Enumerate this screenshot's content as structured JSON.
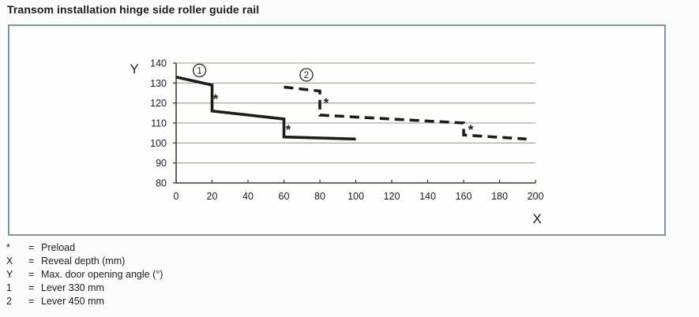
{
  "page": {
    "title": "Transom installation hinge side roller guide rail"
  },
  "colors": {
    "line": "#1c1c1c",
    "grid": "#9b9b8d",
    "axis": "#3d3d38",
    "panel_border": "#8295a3",
    "text": "#1b1b1b"
  },
  "legend": {
    "items": [
      {
        "symbol": "*",
        "eq": "=",
        "label": "Preload"
      },
      {
        "symbol": "X",
        "eq": "=",
        "label": "Reveal depth (mm)"
      },
      {
        "symbol": "Y",
        "eq": "=",
        "label": "Max. door opening angle (°)"
      },
      {
        "symbol": "1",
        "eq": "=",
        "label": "Lever 330 mm"
      },
      {
        "symbol": "2",
        "eq": "=",
        "label": "Lever 450 mm"
      }
    ]
  },
  "chart_data": {
    "type": "line",
    "title": "Transom installation hinge side roller guide rail",
    "xlabel": "X",
    "ylabel": "Y",
    "xlim": [
      0,
      200
    ],
    "ylim": [
      80,
      140
    ],
    "x_ticks": [
      0,
      20,
      40,
      60,
      80,
      100,
      120,
      140,
      160,
      180,
      200
    ],
    "y_ticks": [
      80,
      90,
      100,
      110,
      120,
      130,
      140
    ],
    "grid": "horizontal",
    "legend_position": "below",
    "series": [
      {
        "name": "Lever 330 mm",
        "id": "1",
        "style": "solid",
        "points": [
          [
            0,
            133
          ],
          [
            20,
            129
          ],
          [
            20,
            116
          ],
          [
            60,
            112
          ],
          [
            60,
            103
          ],
          [
            100,
            102
          ]
        ]
      },
      {
        "name": "Lever 450 mm",
        "id": "2",
        "style": "dashed",
        "points": [
          [
            60,
            128
          ],
          [
            80,
            126
          ],
          [
            80,
            114
          ],
          [
            160,
            110
          ],
          [
            160,
            104
          ],
          [
            195,
            102
          ]
        ]
      }
    ],
    "series_labels": [
      {
        "text": "1",
        "x": 13,
        "y": 136.3
      },
      {
        "text": "2",
        "x": 72.5,
        "y": 134.1
      }
    ],
    "annotations": [
      {
        "text": "*",
        "x": 22,
        "y": 122.6
      },
      {
        "text": "*",
        "x": 62.4,
        "y": 107.2
      },
      {
        "text": "*",
        "x": 83.5,
        "y": 120.7
      },
      {
        "text": "*",
        "x": 164,
        "y": 107.2
      }
    ]
  }
}
